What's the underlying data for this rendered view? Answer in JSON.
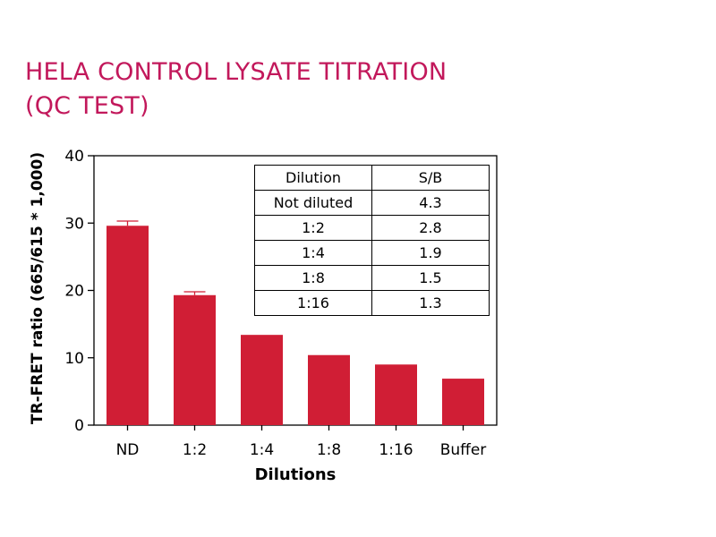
{
  "title_lines": [
    "HELA CONTROL LYSATE TITRATION",
    "(QC TEST)"
  ],
  "chart_data": {
    "type": "bar",
    "categories": [
      "ND",
      "1:2",
      "1:4",
      "1:8",
      "1:16",
      "Buffer"
    ],
    "values": [
      29.6,
      19.3,
      13.4,
      10.4,
      9.0,
      6.9
    ],
    "error_bars": [
      0.7,
      0.5,
      null,
      null,
      null,
      null
    ],
    "xlabel": "Dilutions",
    "ylabel": "TR-FRET ratio (665/615 * 1,000)",
    "ylim": [
      0,
      40
    ],
    "yticks": [
      0,
      10,
      20,
      30,
      40
    ],
    "grid": false,
    "bar_color": "#d01e35"
  },
  "table": {
    "headers": [
      "Dilution",
      "S/B"
    ],
    "rows": [
      [
        "Not diluted",
        "4.3"
      ],
      [
        "1:2",
        "2.8"
      ],
      [
        "1:4",
        "1.9"
      ],
      [
        "1:8",
        "1.5"
      ],
      [
        "1:16",
        "1.3"
      ]
    ]
  }
}
